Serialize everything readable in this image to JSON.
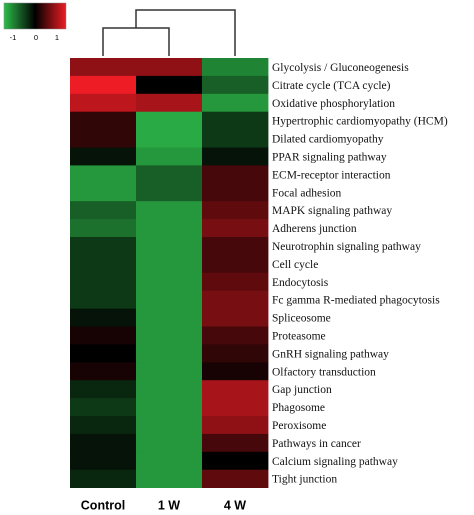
{
  "chart_data": {
    "type": "heatmap",
    "columns": [
      "Control",
      "1 W",
      "4 W"
    ],
    "rows": [
      "Glycolysis / Gluconeogenesis",
      "Citrate cycle (TCA cycle)",
      "Oxidative phosphorylation",
      "Hypertrophic cardiomyopathy (HCM)",
      "Dilated cardiomyopathy",
      "PPAR signaling pathway",
      "ECM-receptor interaction",
      "Focal adhesion",
      "MAPK signaling pathway",
      "Adherens junction",
      "Neurotrophin signaling pathway",
      "Cell cycle",
      "Endocytosis",
      "Fc gamma R-mediated phagocytosis",
      "Spliceosome",
      "Proteasome",
      "GnRH signaling pathway",
      "Olfactory transduction",
      "Gap junction",
      "Phagosome",
      "Peroxisome",
      "Pathways in cancer",
      "Calcium signaling pathway",
      "Tight junction"
    ],
    "values": [
      [
        0.6,
        0.6,
        -0.7
      ],
      [
        1.0,
        0.0,
        -0.5
      ],
      [
        0.8,
        0.7,
        -0.8
      ],
      [
        0.2,
        -0.9,
        -0.3
      ],
      [
        0.2,
        -0.9,
        -0.3
      ],
      [
        -0.1,
        -0.8,
        -0.1
      ],
      [
        -0.8,
        -0.5,
        0.3
      ],
      [
        -0.8,
        -0.5,
        0.3
      ],
      [
        -0.5,
        -0.8,
        0.4
      ],
      [
        -0.6,
        -0.8,
        0.5
      ],
      [
        -0.3,
        -0.8,
        0.3
      ],
      [
        -0.3,
        -0.8,
        0.3
      ],
      [
        -0.3,
        -0.8,
        0.4
      ],
      [
        -0.3,
        -0.8,
        0.5
      ],
      [
        -0.1,
        -0.8,
        0.5
      ],
      [
        0.1,
        -0.8,
        0.3
      ],
      [
        0.0,
        -0.8,
        0.2
      ],
      [
        0.1,
        -0.8,
        0.1
      ],
      [
        -0.2,
        -0.8,
        0.7
      ],
      [
        -0.3,
        -0.8,
        0.7
      ],
      [
        -0.2,
        -0.8,
        0.6
      ],
      [
        -0.1,
        -0.8,
        0.3
      ],
      [
        -0.1,
        -0.8,
        0.0
      ],
      [
        -0.2,
        -0.8,
        0.4
      ]
    ],
    "color_scale": {
      "min": -1,
      "max": 1,
      "min_color": "#2ebd4b",
      "mid_color": "#000000",
      "max_color": "#ee1c24",
      "ticks": [
        "-1",
        "0",
        "1"
      ]
    },
    "dendrogram": "columns",
    "legend_placement": "top-left"
  }
}
